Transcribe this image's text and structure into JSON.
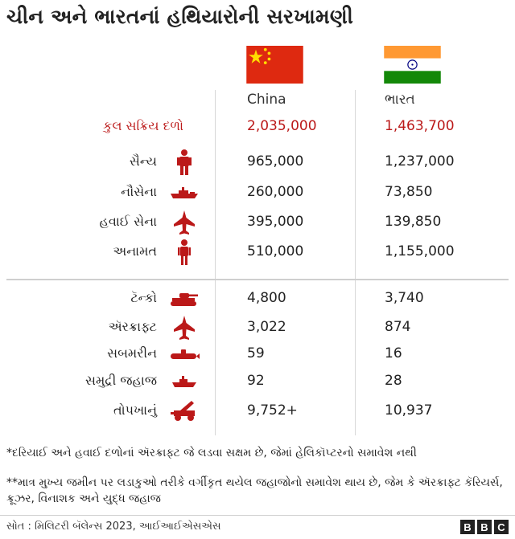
{
  "title": "ચીન અને ભારતનાં હથિયારોની સરખામણી",
  "colors": {
    "accent": "#bb1919",
    "icon": "#bb1919",
    "china_flag_red": "#de2910",
    "china_star": "#ffde00",
    "india_saffron": "#ff9933",
    "india_green": "#138808",
    "india_chakra": "#000080"
  },
  "chart_data": {
    "type": "table",
    "columns": [
      "China",
      "ભારત"
    ],
    "rows": [
      {
        "label": "કુલ સક્રિય દળો",
        "icon": "",
        "china": "2,035,000",
        "india": "1,463,700",
        "highlight": true
      },
      {
        "label": "સૈન્ય",
        "icon": "soldier-icon",
        "china": "965,000",
        "india": "1,237,000"
      },
      {
        "label": "નૌસેના",
        "icon": "warship-icon",
        "china": "260,000",
        "india": "73,850"
      },
      {
        "label": "હવાઈ સેના",
        "icon": "fighter-jet-icon",
        "china": "395,000",
        "india": "139,850"
      },
      {
        "label": "અનામત",
        "icon": "reserve-soldier-icon",
        "china": "510,000",
        "india": "1,155,000"
      },
      {
        "label": "ટૅન્કો",
        "icon": "tank-icon",
        "china": "4,800",
        "india": "3,740"
      },
      {
        "label": "ઍરક્રાફ્ટ",
        "icon": "aircraft-icon",
        "china": "3,022",
        "india": "874"
      },
      {
        "label": "સબમરીન",
        "icon": "submarine-icon",
        "china": "59",
        "india": "16"
      },
      {
        "label": "સમુદ્રી જહાજ",
        "icon": "ship-icon",
        "china": "92",
        "india": "28"
      },
      {
        "label": "તોપખાનું",
        "icon": "artillery-icon",
        "china": "9,752+",
        "india": "10,937"
      }
    ]
  },
  "notes": [
    "*દરિયાઈ અને હવાઈ દળોનાં ઍરક્રાફ્ટ જે લડવા સક્ષમ છે, જેમાં હેલિકૉપ્ટરનો સમાવેશ નથી",
    "**માત્ર મુખ્ય જમીન પર લડાકુઓ તરીકે વર્ગીકૃત થયેલ જહાજોનો સમાવેશ થાય છે, જેમ કે ઍરક્રાફ્ટ કૅરિયર્સ, ક્રૂઝર, વિનાશક અને યુદ્ધ જહાજ"
  ],
  "source": "સોત : મિલિટરી બૅલેન્સ 2023, આઈઆઈએસએસ",
  "logo": [
    "B",
    "B",
    "C"
  ]
}
